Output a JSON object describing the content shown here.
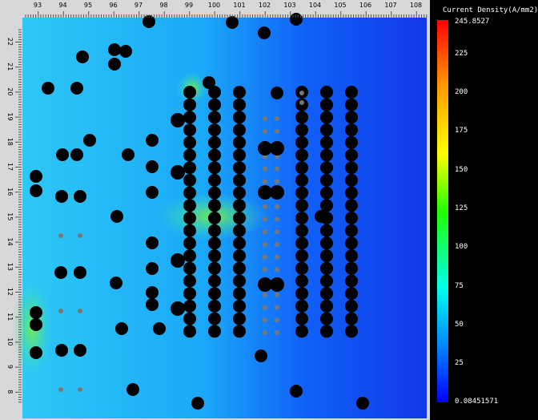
{
  "ruler": {
    "top": [
      "93",
      "94",
      "95",
      "96",
      "97",
      "98",
      "99",
      "100",
      "101",
      "102",
      "103",
      "104",
      "105",
      "106",
      "107",
      "108"
    ],
    "left": [
      "22",
      "21",
      "20",
      "19",
      "18",
      "17",
      "16",
      "15",
      "14",
      "13",
      "12",
      "11",
      "10",
      "9",
      "8"
    ]
  },
  "colorbar": {
    "title": "Current Density(A/mm2)",
    "labels": [
      "245.8527",
      "225",
      "200",
      "175",
      "150",
      "125",
      "100",
      "75",
      "50",
      "25",
      "0.08451571"
    ]
  }
}
